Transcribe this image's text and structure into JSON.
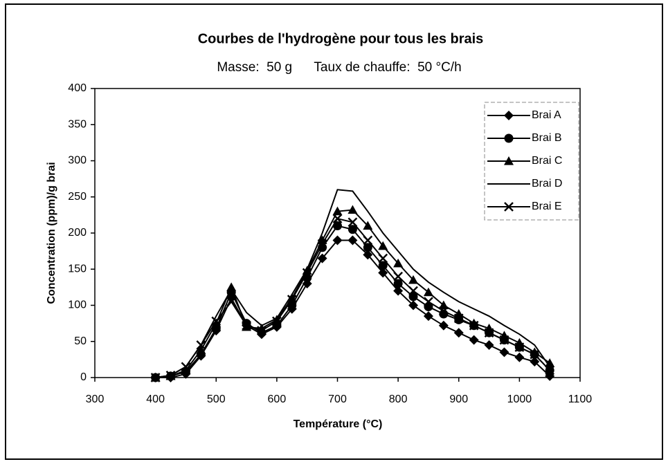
{
  "chart_data": {
    "type": "line",
    "title": "Courbes de l'hydrogène pour tous les brais",
    "subtitle": "Masse:  50 g      Taux de chauffe:  50 °C/h",
    "x_label": "Température (°C)",
    "y_label": "Concentration (ppm)/g brai",
    "x": [
      400,
      425,
      450,
      475,
      500,
      525,
      550,
      575,
      600,
      625,
      650,
      675,
      700,
      725,
      750,
      775,
      800,
      825,
      850,
      875,
      900,
      925,
      950,
      975,
      1000,
      1025,
      1050
    ],
    "series": [
      {
        "name": "Brai A",
        "color": "#000000",
        "marker": "diamond",
        "values": [
          0,
          0,
          5,
          30,
          65,
          110,
          72,
          60,
          70,
          95,
          130,
          165,
          190,
          190,
          170,
          145,
          120,
          100,
          85,
          72,
          62,
          52,
          45,
          35,
          28,
          22,
          2
        ]
      },
      {
        "name": "Brai B",
        "color": "#000000",
        "marker": "circle",
        "values": [
          0,
          2,
          8,
          32,
          68,
          118,
          75,
          62,
          72,
          100,
          138,
          180,
          210,
          205,
          180,
          155,
          130,
          112,
          98,
          88,
          80,
          72,
          62,
          52,
          42,
          32,
          10
        ]
      },
      {
        "name": "Brai C",
        "color": "#000000",
        "marker": "triangle",
        "values": [
          0,
          2,
          10,
          38,
          75,
          125,
          70,
          68,
          80,
          110,
          148,
          190,
          230,
          232,
          210,
          182,
          158,
          135,
          118,
          100,
          88,
          75,
          68,
          58,
          48,
          35,
          20
        ]
      },
      {
        "name": "Brai D",
        "color": "#000000",
        "marker": "none",
        "values": [
          0,
          3,
          15,
          45,
          85,
          122,
          90,
          72,
          82,
          115,
          150,
          200,
          260,
          258,
          230,
          200,
          175,
          150,
          132,
          118,
          105,
          95,
          85,
          72,
          60,
          45,
          15
        ]
      },
      {
        "name": "Brai E",
        "color": "#000000",
        "marker": "x",
        "values": [
          0,
          3,
          15,
          45,
          78,
          105,
          72,
          65,
          78,
          108,
          145,
          185,
          220,
          215,
          190,
          165,
          140,
          120,
          105,
          92,
          82,
          72,
          62,
          52,
          42,
          32,
          10
        ]
      }
    ],
    "xlim": [
      300,
      1100
    ],
    "xticks": [
      300,
      400,
      500,
      600,
      700,
      800,
      900,
      1000,
      1100
    ],
    "ylim": [
      0,
      400
    ],
    "yticks": [
      0,
      50,
      100,
      150,
      200,
      250,
      300,
      350,
      400
    ],
    "grid": false,
    "legend": "top-right"
  }
}
